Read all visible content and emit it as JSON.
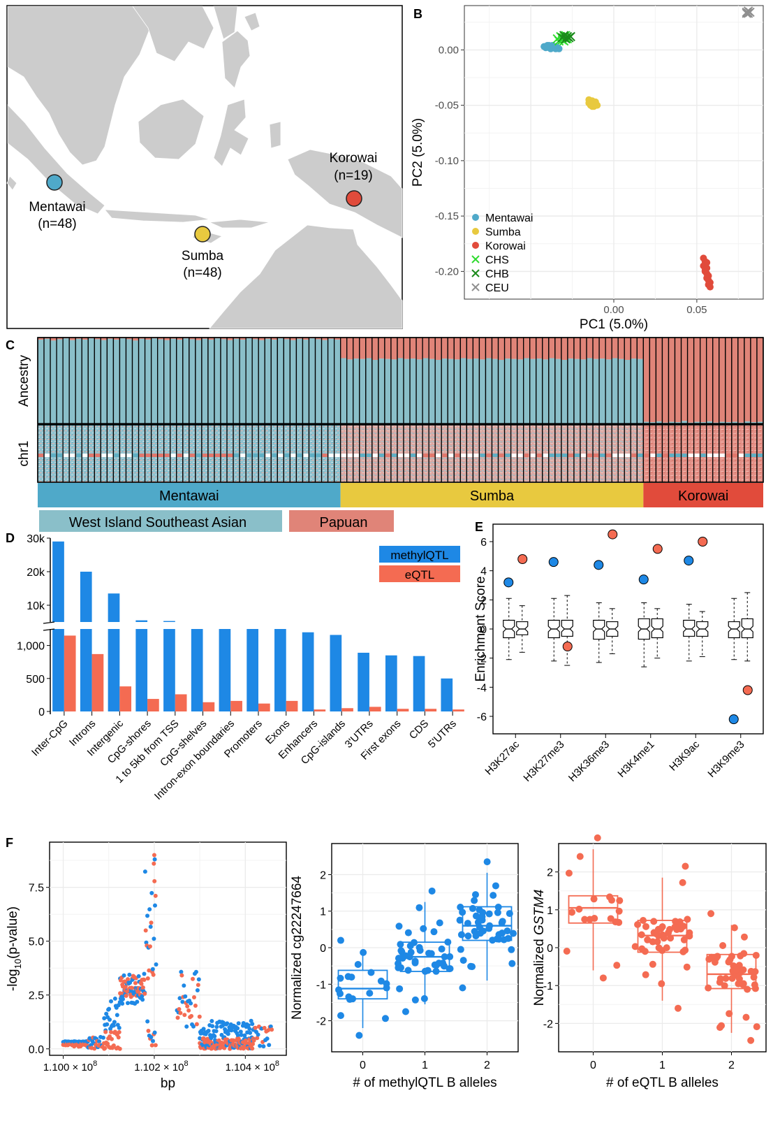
{
  "colors": {
    "mentawai": "#4FA9C9",
    "sumba": "#E8C93F",
    "korowai": "#E14B3B",
    "chs": "#2EDB2E",
    "chb": "#1A8A1A",
    "ceu": "#8F8F8F",
    "methyl": "#1E88E5",
    "eqtl": "#F46B52",
    "wisea": "#8ABFC9",
    "papuan": "#E08478",
    "land": "#CCCCCC",
    "grid": "#EBEBEB"
  },
  "panel_labels": {
    "a": "A",
    "b": "B",
    "c": "C",
    "d": "D",
    "e": "E",
    "f": "F"
  },
  "map": {
    "sites": [
      {
        "name": "Mentawai",
        "n": "(n=48)"
      },
      {
        "name": "Sumba",
        "n": "(n=48)"
      },
      {
        "name": "Korowai",
        "n": "(n=19)"
      }
    ]
  },
  "chart_data": [
    {
      "panel": "B",
      "type": "scatter",
      "xlabel": "PC1 (5.0%)",
      "ylabel": "PC2 (5.0%)",
      "xlim": [
        -0.09,
        0.09
      ],
      "ylim": [
        -0.225,
        0.04
      ],
      "xticks": [
        {
          "v": 0.0,
          "label": "0.00"
        },
        {
          "v": 0.05,
          "label": "0.05"
        }
      ],
      "yticks": [
        {
          "v": 0.0,
          "label": "0.00"
        },
        {
          "v": -0.05,
          "label": "-0.05"
        },
        {
          "v": -0.1,
          "label": "-0.10"
        },
        {
          "v": -0.15,
          "label": "-0.15"
        },
        {
          "v": -0.2,
          "label": "-0.20"
        }
      ],
      "grid": true,
      "legend_position": "bottom-left",
      "series": [
        {
          "name": "Mentawai",
          "marker": "circle",
          "points": [
            [
              -0.042,
              0.003
            ],
            [
              -0.04,
              0.004
            ],
            [
              -0.039,
              0.002
            ],
            [
              -0.038,
              0.003
            ],
            [
              -0.037,
              0.004
            ],
            [
              -0.036,
              0.003
            ],
            [
              -0.035,
              0.001
            ],
            [
              -0.034,
              0.002
            ],
            [
              -0.041,
              0.002
            ],
            [
              -0.039,
              0.004
            ],
            [
              -0.038,
              0.001
            ],
            [
              -0.036,
              0.002
            ],
            [
              -0.04,
              0.003
            ],
            [
              -0.037,
              0.002
            ],
            [
              -0.035,
              0.003
            ],
            [
              -0.033,
              0.001
            ]
          ]
        },
        {
          "name": "Sumba",
          "marker": "circle",
          "points": [
            [
              -0.015,
              -0.045
            ],
            [
              -0.014,
              -0.047
            ],
            [
              -0.013,
              -0.048
            ],
            [
              -0.012,
              -0.049
            ],
            [
              -0.014,
              -0.05
            ],
            [
              -0.013,
              -0.046
            ],
            [
              -0.011,
              -0.049
            ],
            [
              -0.01,
              -0.05
            ],
            [
              -0.012,
              -0.051
            ],
            [
              -0.015,
              -0.048
            ],
            [
              -0.013,
              -0.051
            ],
            [
              -0.011,
              -0.047
            ]
          ]
        },
        {
          "name": "Korowai",
          "marker": "circle",
          "points": [
            [
              0.054,
              -0.188
            ],
            [
              0.055,
              -0.191
            ],
            [
              0.054,
              -0.195
            ],
            [
              0.056,
              -0.197
            ],
            [
              0.055,
              -0.2
            ],
            [
              0.056,
              -0.202
            ],
            [
              0.057,
              -0.204
            ],
            [
              0.056,
              -0.206
            ],
            [
              0.057,
              -0.208
            ],
            [
              0.058,
              -0.21
            ],
            [
              0.057,
              -0.212
            ],
            [
              0.058,
              -0.214
            ],
            [
              0.055,
              -0.199
            ],
            [
              0.056,
              -0.192
            ]
          ]
        },
        {
          "name": "CHS",
          "marker": "x",
          "points": [
            [
              -0.034,
              0.01
            ],
            [
              -0.032,
              0.012
            ],
            [
              -0.031,
              0.009
            ],
            [
              -0.03,
              0.011
            ],
            [
              -0.029,
              0.013
            ],
            [
              -0.028,
              0.01
            ],
            [
              -0.033,
              0.008
            ],
            [
              -0.03,
              0.008
            ]
          ]
        },
        {
          "name": "CHB",
          "marker": "x",
          "points": [
            [
              -0.031,
              0.011
            ],
            [
              -0.029,
              0.01
            ],
            [
              -0.028,
              0.012
            ],
            [
              -0.027,
              0.011
            ],
            [
              -0.03,
              0.013
            ],
            [
              -0.026,
              0.012
            ]
          ]
        },
        {
          "name": "CEU",
          "marker": "x",
          "points": [
            [
              0.08,
              0.034
            ],
            [
              0.081,
              0.033
            ],
            [
              0.082,
              0.034
            ],
            [
              0.081,
              0.035
            ],
            [
              0.08,
              0.033
            ]
          ]
        }
      ]
    },
    {
      "panel": "C",
      "type": "bar",
      "ylabel_top": "Ancestry",
      "ylabel_bottom": "chr1",
      "groups": [
        {
          "name": "Mentawai",
          "n": 48,
          "west": [
            0.975,
            0.985,
            0.965,
            0.98,
            0.99,
            0.97,
            0.985,
            0.975,
            0.99,
            0.98,
            0.97,
            0.985,
            0.975,
            0.99,
            0.98,
            0.965,
            0.985,
            0.975,
            0.99,
            0.98,
            0.97,
            0.985,
            0.975,
            0.99,
            0.98,
            0.97,
            0.985,
            0.975,
            0.99,
            0.98,
            0.97,
            0.985,
            0.975,
            0.99,
            0.98,
            0.97,
            0.985,
            0.975,
            0.99,
            0.98,
            0.97,
            0.985,
            0.975,
            0.99,
            0.98,
            0.97,
            0.985,
            0.975
          ]
        },
        {
          "name": "Sumba",
          "n": 48,
          "west": [
            0.76,
            0.745,
            0.755,
            0.75,
            0.76,
            0.74,
            0.755,
            0.75,
            0.745,
            0.76,
            0.75,
            0.755,
            0.745,
            0.76,
            0.75,
            0.74,
            0.755,
            0.75,
            0.745,
            0.76,
            0.75,
            0.755,
            0.745,
            0.76,
            0.75,
            0.74,
            0.755,
            0.75,
            0.745,
            0.76,
            0.75,
            0.755,
            0.745,
            0.76,
            0.75,
            0.74,
            0.755,
            0.75,
            0.745,
            0.76,
            0.75,
            0.755,
            0.745,
            0.76,
            0.75,
            0.74,
            0.755,
            0.75
          ]
        },
        {
          "name": "Korowai",
          "n": 19,
          "west": [
            0.02,
            0.015,
            0.025,
            0.01,
            0.02,
            0.015,
            0.03,
            0.01,
            0.02,
            0.015,
            0.025,
            0.01,
            0.02,
            0.015,
            0.02,
            0.01,
            0.025,
            0.015,
            0.02
          ]
        }
      ],
      "legend": [
        "West Island Southeast Asian",
        "Papuan"
      ]
    },
    {
      "panel": "D",
      "type": "bar",
      "categories": [
        "Inter-CpG",
        "Introns",
        "Intergenic",
        "CpG-shores",
        "1 to 5kb from TSS",
        "CpG-shelves",
        "Intron-exon boundaries",
        "Promoters",
        "Exons",
        "Enhancers",
        "CpG-islands",
        "3'UTRs",
        "First exons",
        "CDS",
        "5'UTRs"
      ],
      "series": [
        {
          "name": "methylQTL",
          "values": [
            29000,
            20000,
            13500,
            5500,
            5300,
            4200,
            3900,
            3900,
            3800,
            1200,
            1160,
            890,
            850,
            840,
            500
          ]
        },
        {
          "name": "eQTL",
          "values": [
            1150,
            870,
            380,
            190,
            260,
            140,
            160,
            120,
            160,
            30,
            50,
            70,
            40,
            40,
            30
          ]
        }
      ],
      "yticks_lower": [
        {
          "v": 0,
          "label": "0"
        },
        {
          "v": 500,
          "label": "500"
        },
        {
          "v": 1000,
          "label": "1,000"
        }
      ],
      "yticks_upper": [
        {
          "v": 10000,
          "label": "10k"
        },
        {
          "v": 20000,
          "label": "20k"
        },
        {
          "v": 30000,
          "label": "30k"
        }
      ],
      "axis_break": true,
      "legend_position": "top-right"
    },
    {
      "panel": "E",
      "type": "box",
      "ylabel": "Enrichment Score",
      "ylim": [
        -7.2,
        7.2
      ],
      "yticks": [
        -6,
        -4,
        -2,
        0,
        2,
        4,
        6
      ],
      "categories": [
        "H3K27ac",
        "H3K27me3",
        "H3K36me3",
        "H3K4me1",
        "H3K9ac",
        "H3K9me3"
      ],
      "boxes": [
        {
          "min": -2.1,
          "q1": -0.6,
          "median": 0.0,
          "q3": 0.6,
          "max": 2.1
        },
        {
          "min": -1.6,
          "q1": -0.4,
          "median": 0.0,
          "q3": 0.5,
          "max": 1.6
        },
        {
          "min": -2.2,
          "q1": -0.6,
          "median": 0.0,
          "q3": 0.6,
          "max": 2.1
        },
        {
          "min": -2.5,
          "q1": -0.5,
          "median": 0.0,
          "q3": 0.6,
          "max": 2.3
        },
        {
          "min": -2.3,
          "q1": -0.7,
          "median": 0.0,
          "q3": 0.6,
          "max": 1.8
        },
        {
          "min": -1.7,
          "q1": -0.5,
          "median": 0.0,
          "q3": 0.5,
          "max": 1.4
        },
        {
          "min": -2.6,
          "q1": -0.7,
          "median": 0.0,
          "q3": 0.7,
          "max": 1.8
        },
        {
          "min": -2.0,
          "q1": -0.6,
          "median": 0.0,
          "q3": 0.7,
          "max": 1.4
        },
        {
          "min": -2.2,
          "q1": -0.5,
          "median": 0.0,
          "q3": 0.6,
          "max": 1.7
        },
        {
          "min": -1.9,
          "q1": -0.5,
          "median": 0.0,
          "q3": 0.5,
          "max": 1.2
        },
        {
          "min": -2.1,
          "q1": -0.6,
          "median": 0.0,
          "q3": 0.5,
          "max": 2.1
        },
        {
          "min": -2.2,
          "q1": -0.6,
          "median": 0.0,
          "q3": 0.7,
          "max": 2.5
        }
      ],
      "observed": [
        {
          "category": "H3K27ac",
          "methyl": 3.2,
          "eqtl": 4.8
        },
        {
          "category": "H3K27me3",
          "methyl": 4.6,
          "eqtl": -1.2
        },
        {
          "category": "H3K36me3",
          "methyl": 4.4,
          "eqtl": 6.5
        },
        {
          "category": "H3K4me1",
          "methyl": 3.4,
          "eqtl": 5.5
        },
        {
          "category": "H3K9ac",
          "methyl": 4.7,
          "eqtl": 6.0
        },
        {
          "category": "H3K9me3",
          "methyl": -6.2,
          "eqtl": -4.2
        }
      ]
    },
    {
      "panel": "F1",
      "type": "scatter",
      "ylabel_pre": "-log",
      "ylabel_sub": "10",
      "ylabel_post": "(p-value)",
      "xlabel": "bp",
      "xlim": [
        109970000,
        110490000
      ],
      "ylim": [
        -0.3,
        9.6
      ],
      "xticks": [
        {
          "v": 110000000,
          "label": "1.100 × 10"
        },
        {
          "v": 110200000,
          "label": "1.102 × 10"
        },
        {
          "v": 110400000,
          "label": "1.104 × 10"
        }
      ],
      "xtick_exponent": "8",
      "yticks": [
        {
          "v": 0,
          "label": "0.0"
        },
        {
          "v": 2.5,
          "label": "2.5"
        },
        {
          "v": 5,
          "label": "5.0"
        },
        {
          "v": 7.5,
          "label": "7.5"
        }
      ],
      "peak_bp": 110200000,
      "peak_value": 9.0
    },
    {
      "panel": "F2",
      "type": "box",
      "ylabel": "Normalized cg22247664",
      "xlabel": "# of methylQTL B alleles",
      "ylim": [
        -2.85,
        2.85
      ],
      "yticks": [
        -2,
        -1,
        0,
        1,
        2
      ],
      "categories": [
        "0",
        "1",
        "2"
      ],
      "boxes": [
        {
          "min": -2.2,
          "q1": -1.4,
          "median": -1.12,
          "q3": -0.62,
          "max": -0.1
        },
        {
          "min": -1.55,
          "q1": -0.65,
          "median": -0.25,
          "q3": 0.15,
          "max": 1.25
        },
        {
          "min": -0.9,
          "q1": 0.2,
          "median": 0.6,
          "q3": 1.12,
          "max": 2.05
        }
      ]
    },
    {
      "panel": "F3",
      "type": "box",
      "ylabel_pre": "Normalized ",
      "ylabel_gene": "GSTM4",
      "xlabel": "# of eQTL B alleles",
      "ylim": [
        -2.75,
        2.75
      ],
      "yticks": [
        -2,
        -1,
        0,
        1,
        2
      ],
      "categories": [
        "0",
        "1",
        "2"
      ],
      "boxes": [
        {
          "min": -0.6,
          "q1": 0.65,
          "median": 1.05,
          "q3": 1.37,
          "max": 2.6
        },
        {
          "min": -1.4,
          "q1": -0.12,
          "median": 0.32,
          "q3": 0.72,
          "max": 1.85
        },
        {
          "min": -2.25,
          "q1": -1.08,
          "median": -0.7,
          "q3": -0.18,
          "max": 0.6
        }
      ]
    }
  ]
}
